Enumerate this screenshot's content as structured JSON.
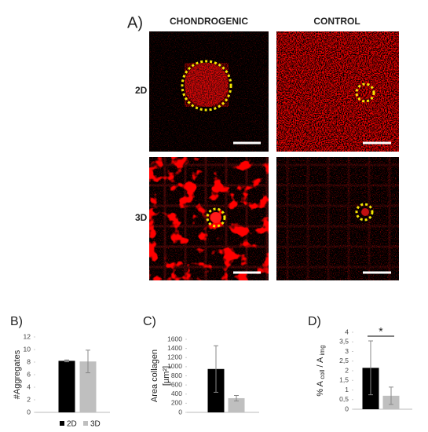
{
  "panel_a": {
    "label": "A)",
    "columns": [
      "CHONDROGENIC",
      "CONTROL"
    ],
    "rows": [
      "2D",
      "3D"
    ]
  },
  "chart_data": [
    {
      "type": "bar",
      "label": "B)",
      "y_label": "#Aggregates",
      "series": [
        {
          "name": "2D",
          "color": "#000000",
          "values": [
            8.2
          ],
          "errors": [
            0.15
          ]
        },
        {
          "name": "3D",
          "color": "#bfbfbf",
          "values": [
            8.1
          ],
          "errors": [
            1.8
          ]
        }
      ],
      "ylim": [
        0,
        12
      ],
      "yticks": [
        0,
        2,
        4,
        6,
        8,
        10,
        12
      ]
    },
    {
      "type": "bar",
      "label": "C)",
      "y_label_lines": [
        "Area collagen",
        "[µm²]"
      ],
      "series": [
        {
          "color": "#000000",
          "values": [
            950
          ],
          "errors": [
            510
          ]
        },
        {
          "color": "#bfbfbf",
          "values": [
            310
          ],
          "errors": [
            60
          ]
        }
      ],
      "ylim": [
        0,
        1600
      ],
      "yticks": [
        0,
        200,
        400,
        600,
        800,
        1000,
        1200,
        1400,
        1600
      ]
    },
    {
      "type": "bar",
      "label": "D)",
      "y_label_parts": [
        "% A ",
        "coll",
        " / A ",
        "img"
      ],
      "annotation": "*",
      "series": [
        {
          "color": "#000000",
          "values": [
            2.15
          ],
          "errors": [
            1.4
          ]
        },
        {
          "color": "#bfbfbf",
          "values": [
            0.7
          ],
          "errors": [
            0.45
          ]
        }
      ],
      "ylim": [
        0,
        4
      ],
      "yticks": [
        0,
        {
          "value": 0.5,
          "label": "0,5"
        },
        1,
        {
          "value": 1.5,
          "label": "1,5"
        },
        2,
        {
          "value": 2.5,
          "label": "2,5"
        },
        3,
        {
          "value": 3.5,
          "label": "3,5"
        },
        4
      ]
    }
  ]
}
